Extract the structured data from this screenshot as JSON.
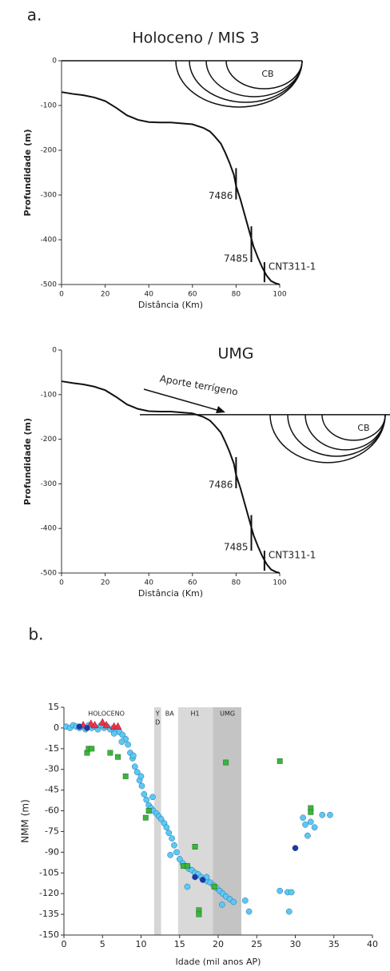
{
  "chart_data": [
    {
      "type": "profile",
      "panel_label": "a.",
      "title": "Holoceno / MIS 3",
      "xlabel": "Distância (Km)",
      "ylabel": "Profundidade (m)",
      "xlim": [
        0,
        100
      ],
      "xticks": [
        0,
        20,
        40,
        60,
        80,
        100
      ],
      "ylim": [
        -500,
        0
      ],
      "yticks": [
        0,
        -100,
        -200,
        -300,
        -400,
        -500
      ],
      "sea_level": 0,
      "basin_label": "CB",
      "series": [
        {
          "color": "#111",
          "x": [
            0,
            5,
            10,
            15,
            20,
            25,
            30,
            35,
            40,
            45,
            50,
            55,
            60,
            65,
            68,
            70,
            73,
            75,
            77,
            79,
            80,
            82,
            84,
            86,
            88,
            90,
            92,
            94,
            96,
            98,
            100
          ],
          "values": [
            -70,
            -74,
            -77,
            -82,
            -90,
            -105,
            -122,
            -132,
            -137,
            -138,
            -138,
            -140,
            -142,
            -150,
            -158,
            -168,
            -185,
            -205,
            -228,
            -255,
            -280,
            -310,
            -345,
            -380,
            -415,
            -440,
            -462,
            -480,
            -492,
            -497,
            -500
          ]
        }
      ],
      "cores": [
        {
          "label": "7486",
          "x": 80,
          "top": -240,
          "bottom": -310
        },
        {
          "label": "7485",
          "x": 87,
          "top": -370,
          "bottom": -450
        },
        {
          "label": "CNT311-1",
          "x": 93,
          "top": -450,
          "bottom": -495
        }
      ]
    },
    {
      "type": "profile",
      "title": "UMG",
      "xlabel": "Distância (Km)",
      "ylabel": "Profundidade (m)",
      "annotation": "Aporte terrígeno",
      "xlim": [
        0,
        100
      ],
      "xticks": [
        0,
        20,
        40,
        60,
        80,
        100
      ],
      "ylim": [
        -500,
        0
      ],
      "yticks": [
        0,
        -100,
        -200,
        -300,
        -400,
        -500
      ],
      "sea_level": -145,
      "basin_label": "CB",
      "series": [
        {
          "color": "#111",
          "x": [
            0,
            5,
            10,
            15,
            20,
            25,
            30,
            35,
            40,
            45,
            50,
            55,
            60,
            65,
            68,
            70,
            73,
            75,
            77,
            79,
            80,
            82,
            84,
            86,
            88,
            90,
            92,
            94,
            96,
            98,
            100
          ],
          "values": [
            -70,
            -74,
            -77,
            -82,
            -90,
            -105,
            -122,
            -132,
            -137,
            -138,
            -138,
            -140,
            -142,
            -150,
            -158,
            -168,
            -185,
            -205,
            -228,
            -255,
            -280,
            -310,
            -345,
            -380,
            -415,
            -440,
            -462,
            -480,
            -492,
            -497,
            -500
          ]
        }
      ],
      "cores": [
        {
          "label": "7486",
          "x": 80,
          "top": -240,
          "bottom": -310
        },
        {
          "label": "7485",
          "x": 87,
          "top": -370,
          "bottom": -450
        },
        {
          "label": "CNT311-1",
          "x": 93,
          "top": -450,
          "bottom": -495
        }
      ]
    },
    {
      "type": "scatter",
      "panel_label": "b.",
      "xlabel": "Idade (mil anos AP)",
      "ylabel": "NMM (m)",
      "xlim": [
        0,
        40
      ],
      "xticks": [
        0,
        5,
        10,
        15,
        20,
        25,
        30,
        35,
        40
      ],
      "ylim": [
        -150,
        15
      ],
      "yticks": [
        15,
        0,
        -15,
        -30,
        -45,
        -60,
        -75,
        -90,
        -105,
        -120,
        -135,
        -150
      ],
      "bands": [
        {
          "from": 11.7,
          "to": 12.6,
          "color": "#d6d6d6"
        },
        {
          "from": 14.8,
          "to": 19.3,
          "color": "#d9d9d9"
        },
        {
          "from": 19.3,
          "to": 23,
          "color": "#c4c4c4"
        }
      ],
      "periods": [
        {
          "label": [
            "HOLOCENO"
          ],
          "x": 5.5
        },
        {
          "label": [
            "Y",
            "D"
          ],
          "x": 12.15
        },
        {
          "label": [
            "BA"
          ],
          "x": 13.7
        },
        {
          "label": [
            "H1"
          ],
          "x": 17
        },
        {
          "label": [
            "UMG"
          ],
          "x": 21.2
        }
      ],
      "series": [
        {
          "marker": "circle",
          "color": "#5cc8f5",
          "x": [
            0.3,
            0.8,
            1.2,
            1.6,
            2,
            2.4,
            2.8,
            3.2,
            3.6,
            4,
            4.4,
            4.8,
            5.2,
            5.6,
            6,
            6.4,
            6.8,
            7.2,
            7.6,
            8,
            8.3,
            8.6,
            8.9,
            9.2,
            9.5,
            9.8,
            10.1,
            10.4,
            10.7,
            11,
            11.3,
            11.6,
            12,
            12.3,
            12.6,
            13,
            13.3,
            13.6,
            14,
            14.3,
            14.6,
            15,
            15.4,
            15.8,
            16.2,
            16.6,
            17,
            17.4,
            17.8,
            18.2,
            18.6,
            19,
            19.4,
            19.8,
            20.2,
            20.6,
            21,
            21.5,
            22,
            23.5,
            24,
            28,
            29,
            29.5,
            29.2,
            31,
            31.3,
            31.6,
            32,
            32.5,
            33.5,
            34.5,
            9,
            10,
            11.5,
            13.8,
            16,
            18.5,
            20.5,
            6.5,
            7.5
          ],
          "values": [
            1,
            0,
            2,
            1,
            0,
            1,
            -1,
            2,
            0,
            1,
            -1,
            2,
            0,
            1,
            -1,
            0,
            -2,
            -3,
            -5,
            -8,
            -12,
            -18,
            -22,
            -28,
            -32,
            -38,
            -42,
            -48,
            -52,
            -56,
            -58,
            -60,
            -62,
            -64,
            -66,
            -69,
            -72,
            -76,
            -80,
            -85,
            -90,
            -95,
            -98,
            -100,
            -102,
            -103,
            -105,
            -106,
            -108,
            -110,
            -111,
            -112,
            -114,
            -116,
            -118,
            -120,
            -122,
            -124,
            -126,
            -125,
            -133,
            -118,
            -119,
            -119,
            -133,
            -65,
            -70,
            -78,
            -68,
            -72,
            -63,
            -63,
            -20,
            -35,
            -50,
            -92,
            -115,
            -108,
            -128,
            -4,
            -10
          ]
        },
        {
          "marker": "square",
          "color": "#3cb43c",
          "x": [
            3,
            3.2,
            3.6,
            6,
            7,
            8,
            10.6,
            11,
            15.5,
            16,
            17,
            17.5,
            17.5,
            19.5,
            21,
            28,
            32,
            32
          ],
          "values": [
            -18,
            -15,
            -15,
            -18,
            -21,
            -35,
            -65,
            -60,
            -100,
            -100,
            -86,
            -132,
            -135,
            -115,
            -25,
            -24,
            -58,
            -61
          ]
        },
        {
          "marker": "triangle",
          "color": "#e8354a",
          "x": [
            2.5,
            3.5,
            4,
            5,
            5.5,
            6.5,
            7
          ],
          "values": [
            2,
            3,
            2,
            4,
            2,
            1,
            1
          ]
        },
        {
          "marker": "circle",
          "color": "#2233aa",
          "x": [
            2,
            3,
            17,
            18,
            30
          ],
          "values": [
            1,
            0,
            -108,
            -110,
            -87
          ]
        }
      ]
    }
  ]
}
